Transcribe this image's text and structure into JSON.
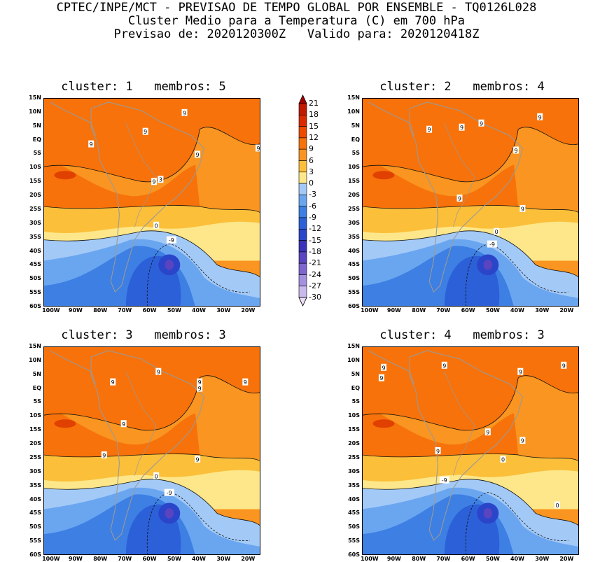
{
  "header": {
    "line1": "CPTEC/INPE/MCT - PREVISAO DE TEMPO GLOBAL POR ENSEMBLE - TQ0126L028",
    "line2": "Cluster Medio para a Temperatura (C) em 700 hPa",
    "line3": "Previsao de: 2020120300Z   Valido para: 2020120418Z"
  },
  "panels": [
    {
      "title": "cluster: 1   membros: 5",
      "contour_labels": [
        "9",
        "9",
        "9",
        "9",
        "9",
        "3",
        "9",
        "0",
        "-9"
      ]
    },
    {
      "title": "cluster: 2   membros: 4",
      "contour_labels": [
        "9",
        "9",
        "9",
        "9",
        "9",
        "9",
        "9",
        "0",
        "-9"
      ]
    },
    {
      "title": "cluster: 3   membros: 3",
      "contour_labels": [
        "9",
        "9",
        "9",
        "9",
        "9",
        "9",
        "9",
        "9",
        "0",
        "-9"
      ]
    },
    {
      "title": "cluster: 4   membros: 3",
      "contour_labels": [
        "9",
        "9",
        "9",
        "9",
        "9",
        "9",
        "9",
        "9",
        "0",
        "-9",
        "0"
      ]
    }
  ],
  "lat_labels": [
    "15N",
    "10N",
    "5N",
    "EQ",
    "5S",
    "10S",
    "15S",
    "20S",
    "25S",
    "30S",
    "35S",
    "40S",
    "45S",
    "50S",
    "55S",
    "60S"
  ],
  "lon_labels": [
    "100W",
    "90W",
    "80W",
    "70W",
    "60W",
    "50W",
    "40W",
    "30W",
    "20W"
  ],
  "colorbar": {
    "levels": [
      "21",
      "18",
      "15",
      "12",
      "9",
      "6",
      "3",
      "0",
      "-3",
      "-6",
      "-9",
      "-12",
      "-15",
      "-18",
      "-21",
      "-24",
      "-27",
      "-30"
    ],
    "colors": [
      "#a30000",
      "#c01a00",
      "#dc2a00",
      "#ee4a00",
      "#f7720a",
      "#f99520",
      "#fbbf3a",
      "#fde78a",
      "#a3c9f7",
      "#6aa6f0",
      "#3d7fe3",
      "#2c60d8",
      "#2a45c9",
      "#3a33b9",
      "#5a44c0",
      "#7d66d0",
      "#a391df",
      "#c9b8ec",
      "#ecdff7"
    ]
  },
  "palette": {
    "warm_deep": "#ee4a00",
    "warm": "#f7720a",
    "orange": "#f99520",
    "gold": "#fbbf3a",
    "pale": "#fde78a",
    "cool1": "#a3c9f7",
    "cool2": "#6aa6f0",
    "cool3": "#3d7fe3",
    "cool4": "#2c60d8",
    "cool5": "#2a45c9",
    "cool6": "#5a44c0",
    "coast": "#9a9a9a"
  }
}
